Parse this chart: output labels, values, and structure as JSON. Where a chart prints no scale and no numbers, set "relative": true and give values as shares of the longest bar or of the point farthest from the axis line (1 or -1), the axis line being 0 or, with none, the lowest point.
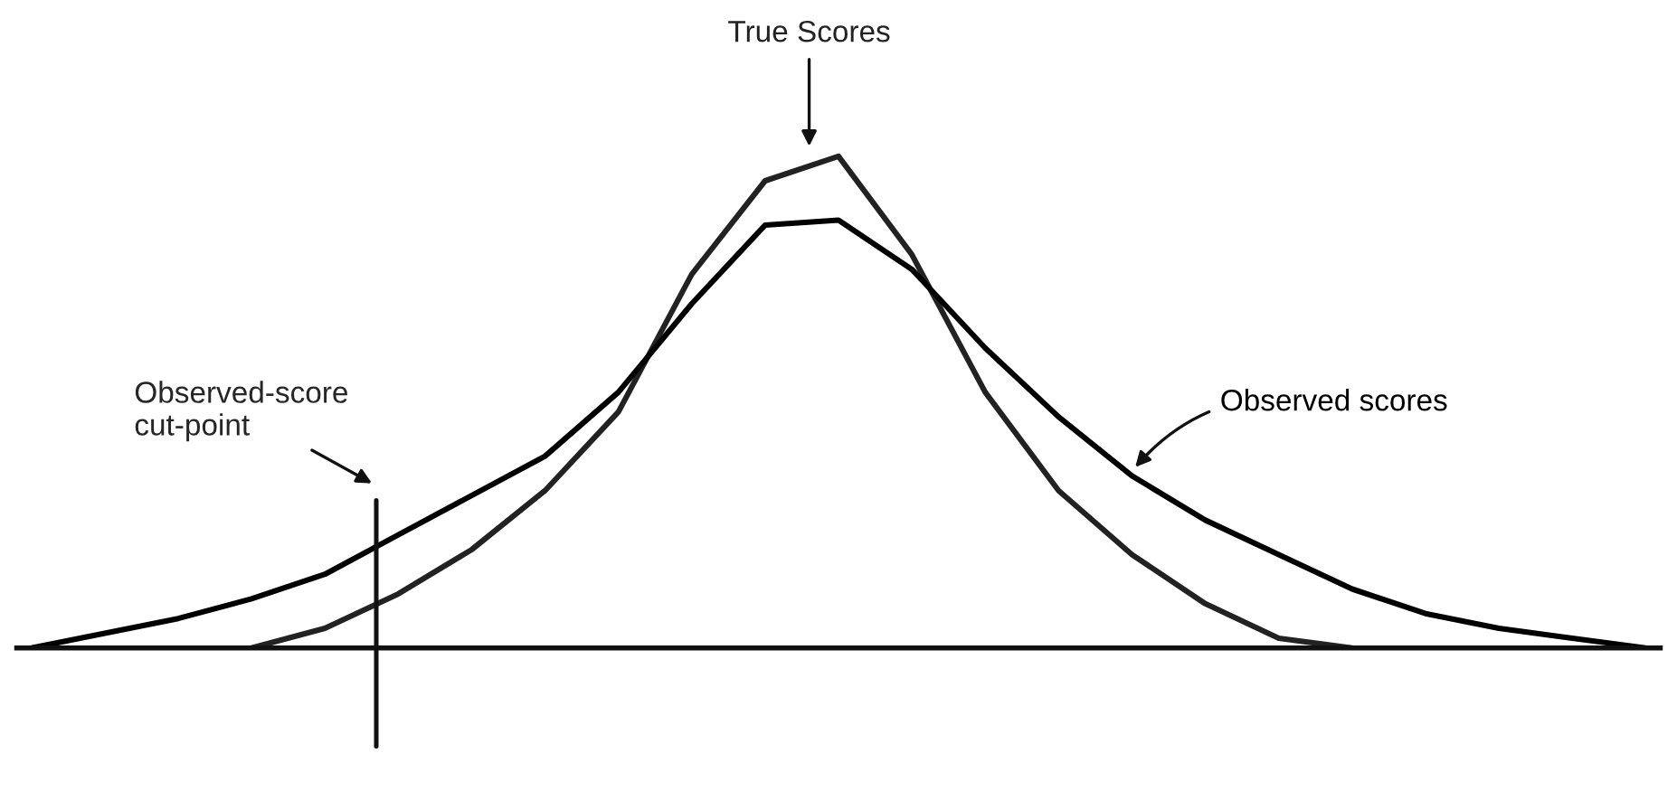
{
  "chart_data": {
    "type": "line",
    "relative": true,
    "categories": [
      null,
      null,
      null,
      null,
      null,
      null,
      null,
      null,
      null,
      null,
      null,
      null,
      null,
      null,
      null,
      null,
      null,
      null,
      null,
      null,
      null,
      null,
      null
    ],
    "series": [
      {
        "name": "True Scores",
        "color": "#222222",
        "values": [
          null,
          null,
          null,
          0,
          0.04,
          0.11,
          0.2,
          0.32,
          0.48,
          0.76,
          0.95,
          1,
          0.8,
          0.52,
          0.32,
          0.19,
          0.09,
          0.02,
          0,
          null,
          null,
          null,
          null
        ]
      },
      {
        "name": "Observed scores",
        "color": "#000000",
        "values": [
          0,
          0.03,
          0.06,
          0.1,
          0.15,
          0.23,
          0.31,
          0.39,
          0.52,
          0.7,
          0.86,
          0.87,
          0.77,
          0.61,
          0.47,
          0.35,
          0.26,
          0.19,
          0.12,
          0.07,
          0.04,
          0.02,
          0
        ]
      }
    ],
    "annotations": [
      "Observed-score\ncut-point"
    ],
    "legend": false,
    "marker": "none",
    "line_style": "solid"
  }
}
